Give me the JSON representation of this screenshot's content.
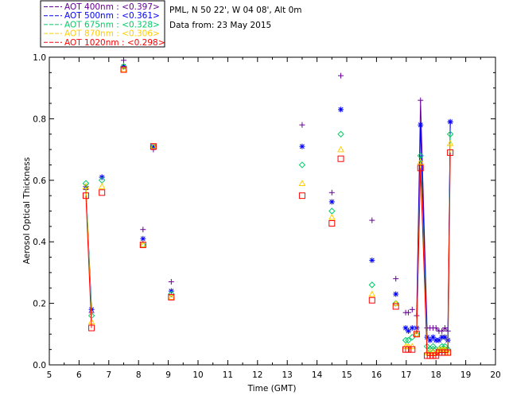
{
  "chart_data": {
    "type": "scatter",
    "xlabel": "Time (GMT)",
    "ylabel": "Aerosol Optical Thickness",
    "xlim": [
      5,
      20
    ],
    "ylim": [
      0.0,
      1.0
    ],
    "x_ticks": [
      5,
      6,
      7,
      8,
      9,
      10,
      11,
      12,
      13,
      14,
      15,
      16,
      17,
      18,
      19,
      20
    ],
    "y_ticks": [
      0.0,
      0.2,
      0.4,
      0.6,
      0.8,
      1.0
    ],
    "x_tick_labels": [
      "5",
      "6",
      "7",
      "8",
      "9",
      "10",
      "11",
      "12",
      "13",
      "14",
      "15",
      "16",
      "17",
      "18",
      "19",
      "20"
    ],
    "y_tick_labels": [
      "0.0",
      "0.2",
      "0.4",
      "0.6",
      "0.8",
      "1.0"
    ],
    "legend_position": "top-left-outside",
    "site_info": "PML, N 50 22', W 04 08', Alt 0m",
    "date_info": "Data from: 23 May 2015",
    "series": [
      {
        "name": "AOT 400nm",
        "mean": "<0.397>",
        "color": "#660099",
        "marker": "plus",
        "points": [
          [
            6.23,
            0.57
          ],
          [
            6.42,
            0.17
          ],
          [
            6.77,
            0.61
          ],
          [
            7.5,
            0.99
          ],
          [
            8.15,
            0.44
          ],
          [
            8.5,
            0.7
          ],
          [
            9.1,
            0.27
          ],
          [
            13.5,
            0.78
          ],
          [
            14.5,
            0.56
          ],
          [
            14.8,
            0.94
          ],
          [
            15.85,
            0.47
          ],
          [
            16.65,
            0.28
          ],
          [
            16.98,
            0.17
          ],
          [
            17.07,
            0.17
          ],
          [
            17.2,
            0.18
          ],
          [
            17.35,
            0.16
          ],
          [
            17.48,
            0.86
          ],
          [
            17.7,
            0.12
          ],
          [
            17.8,
            0.12
          ],
          [
            17.9,
            0.12
          ],
          [
            18.0,
            0.12
          ],
          [
            18.1,
            0.11
          ],
          [
            18.2,
            0.11
          ],
          [
            18.3,
            0.12
          ],
          [
            18.4,
            0.11
          ],
          [
            18.48,
            0.79
          ]
        ],
        "line_segments": [
          [
            6.23,
            6.42
          ],
          [
            17.35,
            18.48
          ]
        ]
      },
      {
        "name": "AOT 500nm",
        "mean": "<0.361>",
        "color": "#0000ff",
        "marker": "asterisk",
        "points": [
          [
            6.23,
            0.58
          ],
          [
            6.42,
            0.18
          ],
          [
            6.77,
            0.61
          ],
          [
            7.5,
            0.97
          ],
          [
            8.15,
            0.41
          ],
          [
            8.5,
            0.71
          ],
          [
            9.1,
            0.24
          ],
          [
            13.5,
            0.71
          ],
          [
            14.5,
            0.53
          ],
          [
            14.8,
            0.83
          ],
          [
            15.85,
            0.34
          ],
          [
            16.65,
            0.23
          ],
          [
            16.98,
            0.12
          ],
          [
            17.07,
            0.11
          ],
          [
            17.2,
            0.12
          ],
          [
            17.35,
            0.12
          ],
          [
            17.48,
            0.78
          ],
          [
            17.7,
            0.09
          ],
          [
            17.8,
            0.08
          ],
          [
            17.9,
            0.09
          ],
          [
            18.0,
            0.08
          ],
          [
            18.1,
            0.08
          ],
          [
            18.2,
            0.09
          ],
          [
            18.3,
            0.09
          ],
          [
            18.4,
            0.08
          ],
          [
            18.48,
            0.79
          ]
        ],
        "line_segments": [
          [
            6.23,
            6.42
          ],
          [
            17.35,
            18.48
          ]
        ]
      },
      {
        "name": "AOT 675nm",
        "mean": "<0.328>",
        "color": "#00cc66",
        "marker": "diamond",
        "points": [
          [
            6.23,
            0.59
          ],
          [
            6.42,
            0.16
          ],
          [
            6.77,
            0.6
          ],
          [
            7.5,
            0.97
          ],
          [
            8.15,
            0.39
          ],
          [
            8.5,
            0.71
          ],
          [
            9.1,
            0.23
          ],
          [
            13.5,
            0.65
          ],
          [
            14.5,
            0.5
          ],
          [
            14.8,
            0.75
          ],
          [
            15.85,
            0.26
          ],
          [
            16.65,
            0.2
          ],
          [
            16.98,
            0.08
          ],
          [
            17.07,
            0.08
          ],
          [
            17.2,
            0.09
          ],
          [
            17.35,
            0.1
          ],
          [
            17.48,
            0.68
          ],
          [
            17.7,
            0.06
          ],
          [
            17.8,
            0.05
          ],
          [
            17.9,
            0.06
          ],
          [
            18.0,
            0.05
          ],
          [
            18.1,
            0.05
          ],
          [
            18.2,
            0.06
          ],
          [
            18.3,
            0.06
          ],
          [
            18.4,
            0.05
          ],
          [
            18.48,
            0.75
          ]
        ],
        "line_segments": [
          [
            6.23,
            6.42
          ],
          [
            17.35,
            18.48
          ]
        ]
      },
      {
        "name": "AOT 870nm",
        "mean": "<0.306>",
        "color": "#ffcc00",
        "marker": "triangle",
        "points": [
          [
            6.23,
            0.58
          ],
          [
            6.42,
            0.14
          ],
          [
            6.77,
            0.58
          ],
          [
            7.5,
            0.96
          ],
          [
            8.15,
            0.39
          ],
          [
            8.5,
            0.71
          ],
          [
            9.1,
            0.22
          ],
          [
            13.5,
            0.59
          ],
          [
            14.5,
            0.48
          ],
          [
            14.8,
            0.7
          ],
          [
            15.85,
            0.23
          ],
          [
            16.65,
            0.2
          ],
          [
            16.98,
            0.06
          ],
          [
            17.07,
            0.06
          ],
          [
            17.2,
            0.06
          ],
          [
            17.35,
            0.1
          ],
          [
            17.48,
            0.66
          ],
          [
            17.7,
            0.04
          ],
          [
            17.8,
            0.04
          ],
          [
            17.9,
            0.04
          ],
          [
            18.0,
            0.04
          ],
          [
            18.1,
            0.05
          ],
          [
            18.2,
            0.05
          ],
          [
            18.3,
            0.05
          ],
          [
            18.4,
            0.04
          ],
          [
            18.48,
            0.72
          ]
        ],
        "line_segments": [
          [
            6.23,
            6.42
          ],
          [
            17.35,
            18.48
          ]
        ]
      },
      {
        "name": "AOT 1020nm",
        "mean": "<0.298>",
        "color": "#ff0000",
        "marker": "square",
        "points": [
          [
            6.23,
            0.55
          ],
          [
            6.42,
            0.12
          ],
          [
            6.77,
            0.56
          ],
          [
            7.5,
            0.96
          ],
          [
            8.15,
            0.39
          ],
          [
            8.5,
            0.71
          ],
          [
            9.1,
            0.22
          ],
          [
            13.5,
            0.55
          ],
          [
            14.5,
            0.46
          ],
          [
            14.8,
            0.67
          ],
          [
            15.85,
            0.21
          ],
          [
            16.65,
            0.19
          ],
          [
            16.98,
            0.05
          ],
          [
            17.07,
            0.05
          ],
          [
            17.2,
            0.05
          ],
          [
            17.35,
            0.1
          ],
          [
            17.48,
            0.64
          ],
          [
            17.7,
            0.03
          ],
          [
            17.8,
            0.03
          ],
          [
            17.9,
            0.03
          ],
          [
            18.0,
            0.03
          ],
          [
            18.1,
            0.04
          ],
          [
            18.2,
            0.04
          ],
          [
            18.3,
            0.04
          ],
          [
            18.4,
            0.04
          ],
          [
            18.48,
            0.69
          ]
        ],
        "line_segments": [
          [
            6.23,
            6.42
          ],
          [
            17.35,
            18.48
          ]
        ]
      }
    ]
  }
}
